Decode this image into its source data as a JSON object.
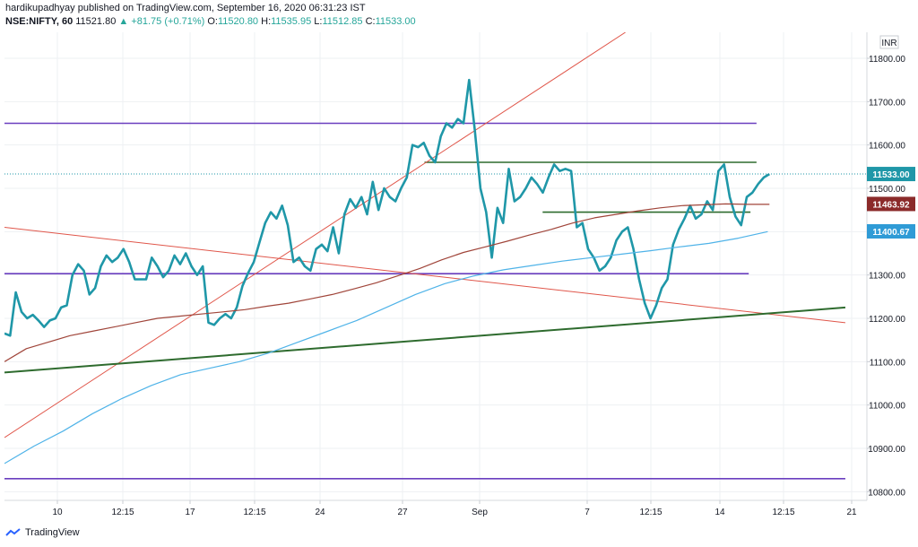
{
  "header": {
    "line1": "hardikupadhyay published on TradingView.com, September 16, 2020 06:31:23 IST",
    "symbol": "NSE:NIFTY, 60",
    "last": "11521.80",
    "arrow": "▲",
    "change": "+81.75 (+0.71%)",
    "o_label": "O:",
    "o_val": "11520.80",
    "h_label": "H:",
    "h_val": "11535.95",
    "l_label": "L:",
    "l_val": "11512.85",
    "c_label": "C:",
    "c_val": "11533.00"
  },
  "footer": {
    "brand": "TradingView"
  },
  "colors": {
    "price": "#1f97a8",
    "ma_brown": "#a0453a",
    "ma_blue": "#4fb3e8",
    "trend_green": "#2e6b2e",
    "level_purple": "#6a3fbf",
    "trend_red": "#e0564a",
    "tag_last": "#1f97a8",
    "tag_brown": "#8b2a2a",
    "tag_blue": "#2f9bd6"
  },
  "chart_data": {
    "type": "line",
    "currency_label": "INR",
    "ylim": [
      10780,
      11860
    ],
    "y_ticks": [
      "11800.00",
      "11700.00",
      "11600.00",
      "11500.00",
      "11400.00",
      "11300.00",
      "11200.00",
      "11100.00",
      "11000.00",
      "10900.00",
      "10800.00"
    ],
    "x_ticks": [
      "10",
      "12:15",
      "17",
      "12:15",
      "24",
      "27",
      "Sep",
      "7",
      "12:15",
      "14",
      "12:15",
      "21"
    ],
    "price_tags": [
      {
        "name": "last",
        "value": 11533.0,
        "label": "11533.00"
      },
      {
        "name": "ma-brown",
        "value": 11463.92,
        "label": "11463.92"
      },
      {
        "name": "ma-blue",
        "value": 11400.67,
        "label": "11400.67"
      }
    ],
    "series": [
      {
        "role": "price",
        "values": [
          11165,
          11160,
          11260,
          11215,
          11200,
          11208,
          11195,
          11180,
          11195,
          11200,
          11225,
          11230,
          11300,
          11325,
          11310,
          11255,
          11270,
          11320,
          11345,
          11330,
          11340,
          11360,
          11330,
          11290,
          11290,
          11290,
          11340,
          11320,
          11295,
          11310,
          11345,
          11325,
          11350,
          11320,
          11300,
          11320,
          11190,
          11185,
          11200,
          11210,
          11200,
          11225,
          11275,
          11305,
          11330,
          11375,
          11420,
          11445,
          11430,
          11460,
          11415,
          11330,
          11340,
          11320,
          11310,
          11360,
          11370,
          11355,
          11410,
          11350,
          11440,
          11475,
          11455,
          11480,
          11440,
          11515,
          11450,
          11500,
          11480,
          11470,
          11500,
          11525,
          11600,
          11595,
          11605,
          11575,
          11560,
          11620,
          11650,
          11640,
          11660,
          11650,
          11750,
          11635,
          11500,
          11445,
          11340,
          11455,
          11420,
          11545,
          11470,
          11480,
          11500,
          11525,
          11510,
          11490,
          11525,
          11555,
          11540,
          11545,
          11540,
          11410,
          11420,
          11360,
          11340,
          11310,
          11320,
          11340,
          11380,
          11400,
          11410,
          11360,
          11290,
          11235,
          11200,
          11230,
          11270,
          11290,
          11370,
          11405,
          11430,
          11460,
          11430,
          11440,
          11470,
          11450,
          11540,
          11555,
          11480,
          11435,
          11415,
          11480,
          11490,
          11510,
          11525,
          11533
        ]
      },
      {
        "role": "ma_brown",
        "values": [
          11100,
          11130,
          11145,
          11160,
          11170,
          11180,
          11190,
          11200,
          11205,
          11210,
          11215,
          11220,
          11228,
          11235,
          11245,
          11255,
          11268,
          11282,
          11298,
          11315,
          11335,
          11352,
          11365,
          11378,
          11392,
          11405,
          11420,
          11432,
          11440,
          11448,
          11455,
          11460,
          11462,
          11464,
          11463,
          11463
        ]
      },
      {
        "role": "ma_blue",
        "values": [
          10865,
          10905,
          10940,
          10980,
          11015,
          11045,
          11070,
          11085,
          11100,
          11120,
          11145,
          11170,
          11195,
          11225,
          11255,
          11280,
          11298,
          11312,
          11322,
          11332,
          11340,
          11348,
          11356,
          11365,
          11373,
          11385,
          11400
        ]
      }
    ],
    "trend_lines": [
      {
        "name": "red-ascending",
        "from": [
          0,
          10925
        ],
        "to": [
          0.72,
          11860
        ]
      },
      {
        "name": "red-descending",
        "from": [
          0,
          11410
        ],
        "to": [
          0.975,
          11190
        ]
      },
      {
        "name": "green-ascending",
        "from": [
          0,
          11075
        ],
        "to": [
          0.975,
          11225
        ]
      }
    ],
    "levels": [
      {
        "name": "purple-11650",
        "value": 11650,
        "x_from": 0,
        "x_to": 0.872,
        "color": "level_purple"
      },
      {
        "name": "purple-11303",
        "value": 11303,
        "x_from": 0,
        "x_to": 0.863,
        "color": "level_purple"
      },
      {
        "name": "purple-10830",
        "value": 10830,
        "x_from": 0,
        "x_to": 0.975,
        "color": "level_purple"
      },
      {
        "name": "green-11560",
        "value": 11560,
        "x_from": 0.487,
        "x_to": 0.872,
        "color": "trend_green"
      },
      {
        "name": "green-11445",
        "value": 11445,
        "x_from": 0.624,
        "x_to": 0.865,
        "color": "trend_green"
      }
    ]
  }
}
